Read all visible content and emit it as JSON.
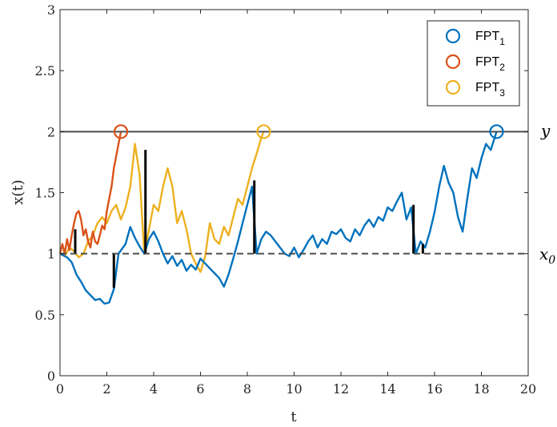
{
  "chart_data": {
    "type": "line",
    "title": "",
    "xlabel": "t",
    "ylabel": "x(t)",
    "xlim": [
      0,
      20
    ],
    "ylim": [
      0,
      3
    ],
    "xticks": [
      "0",
      "2",
      "4",
      "6",
      "8",
      "10",
      "12",
      "14",
      "16",
      "18",
      "20"
    ],
    "yticks": [
      "0",
      "0.5",
      "1",
      "1.5",
      "2",
      "2.5",
      "3"
    ],
    "grid": false,
    "legend_position": "top-right",
    "reference_lines": [
      {
        "label": "y",
        "y": 2,
        "style": "solid",
        "color": "#4d4d4d"
      },
      {
        "label": "x_0",
        "y": 1,
        "style": "dashed",
        "color": "#4d4d4d"
      }
    ],
    "series": [
      {
        "name": "FPT_1",
        "color": "#0072BD",
        "first_passage": {
          "x": 18.65,
          "y": 2.0
        },
        "x": [
          0,
          0.3,
          0.5,
          0.7,
          0.9,
          1.1,
          1.3,
          1.5,
          1.7,
          1.9,
          2.1,
          2.3,
          2.5,
          2.8,
          3.0,
          3.2,
          3.4,
          3.6,
          3.8,
          4.0,
          4.2,
          4.4,
          4.6,
          4.8,
          5.0,
          5.2,
          5.4,
          5.6,
          5.8,
          6.0,
          6.2,
          6.4,
          6.6,
          6.8,
          7.0,
          7.2,
          7.4,
          7.6,
          7.8,
          8.0,
          8.2,
          8.4,
          8.6,
          8.8,
          9.0,
          9.2,
          9.4,
          9.6,
          9.8,
          10.0,
          10.2,
          10.4,
          10.6,
          10.8,
          11.0,
          11.2,
          11.4,
          11.6,
          11.8,
          12.0,
          12.2,
          12.4,
          12.6,
          12.8,
          13.0,
          13.2,
          13.4,
          13.6,
          13.8,
          14.0,
          14.2,
          14.4,
          14.6,
          14.8,
          15.0,
          15.2,
          15.4,
          15.6,
          15.8,
          16.0,
          16.2,
          16.4,
          16.6,
          16.8,
          17.0,
          17.2,
          17.4,
          17.6,
          17.8,
          18.0,
          18.2,
          18.4,
          18.65
        ],
        "y": [
          1.0,
          0.97,
          0.93,
          0.83,
          0.77,
          0.7,
          0.66,
          0.62,
          0.63,
          0.59,
          0.6,
          0.71,
          1.0,
          1.08,
          1.22,
          1.13,
          1.06,
          1.0,
          1.12,
          1.18,
          1.1,
          1.0,
          0.92,
          0.98,
          0.9,
          0.95,
          0.86,
          0.91,
          0.87,
          0.96,
          0.92,
          0.88,
          0.84,
          0.8,
          0.73,
          0.83,
          0.96,
          1.1,
          1.25,
          1.4,
          1.55,
          1.0,
          1.12,
          1.18,
          1.15,
          1.1,
          1.05,
          1.0,
          0.98,
          1.05,
          0.97,
          1.03,
          1.1,
          1.15,
          1.05,
          1.12,
          1.08,
          1.18,
          1.16,
          1.2,
          1.13,
          1.1,
          1.2,
          1.15,
          1.23,
          1.28,
          1.22,
          1.3,
          1.27,
          1.38,
          1.35,
          1.43,
          1.5,
          1.28,
          1.38,
          1.0,
          1.1,
          1.05,
          1.18,
          1.34,
          1.55,
          1.72,
          1.58,
          1.5,
          1.3,
          1.18,
          1.45,
          1.7,
          1.62,
          1.78,
          1.9,
          1.85,
          2.0
        ]
      },
      {
        "name": "FPT_2",
        "color": "#D95319",
        "first_passage": {
          "x": 2.6,
          "y": 2.0
        },
        "x": [
          0,
          0.1,
          0.2,
          0.3,
          0.4,
          0.5,
          0.6,
          0.7,
          0.8,
          0.9,
          1.0,
          1.1,
          1.2,
          1.3,
          1.4,
          1.5,
          1.6,
          1.7,
          1.8,
          1.9,
          2.0,
          2.1,
          2.2,
          2.3,
          2.4,
          2.5,
          2.6
        ],
        "y": [
          1.0,
          1.08,
          1.0,
          1.12,
          1.03,
          1.15,
          1.25,
          1.33,
          1.35,
          1.28,
          1.15,
          1.2,
          1.1,
          1.05,
          1.18,
          1.1,
          1.08,
          1.15,
          1.23,
          1.2,
          1.35,
          1.45,
          1.55,
          1.7,
          1.8,
          1.9,
          2.0
        ]
      },
      {
        "name": "FPT_3",
        "color": "#EDB120",
        "first_passage": {
          "x": 8.7,
          "y": 2.0
        },
        "x": [
          0,
          0.2,
          0.4,
          0.6,
          0.8,
          1.0,
          1.2,
          1.4,
          1.6,
          1.8,
          2.0,
          2.2,
          2.4,
          2.6,
          2.8,
          3.0,
          3.2,
          3.4,
          3.6,
          3.8,
          4.0,
          4.2,
          4.4,
          4.6,
          4.8,
          5.0,
          5.2,
          5.4,
          5.6,
          5.8,
          6.0,
          6.2,
          6.4,
          6.6,
          6.8,
          7.0,
          7.2,
          7.4,
          7.6,
          7.8,
          8.0,
          8.2,
          8.4,
          8.6,
          8.7
        ],
        "y": [
          1.0,
          0.98,
          1.05,
          1.02,
          0.97,
          1.0,
          1.1,
          1.15,
          1.25,
          1.3,
          1.25,
          1.35,
          1.4,
          1.28,
          1.38,
          1.55,
          1.9,
          1.65,
          1.0,
          1.2,
          1.4,
          1.35,
          1.55,
          1.7,
          1.55,
          1.25,
          1.35,
          1.2,
          1.0,
          0.92,
          0.85,
          0.98,
          1.25,
          1.12,
          1.08,
          1.22,
          1.15,
          1.3,
          1.45,
          1.4,
          1.55,
          1.7,
          1.82,
          1.95,
          2.0
        ]
      }
    ]
  },
  "legend": {
    "items": [
      {
        "main": "FPT",
        "sub": "1",
        "color": "#0072BD"
      },
      {
        "main": "FPT",
        "sub": "2",
        "color": "#D95319"
      },
      {
        "main": "FPT",
        "sub": "3",
        "color": "#EDB120"
      }
    ]
  },
  "labels": {
    "y_ref": "y",
    "x0_main": "x",
    "x0_sub": "0"
  },
  "reset_segments": [
    {
      "x": 0.65,
      "y_from": 1.0,
      "y_to": 1.2
    },
    {
      "x": 2.3,
      "y_from": 0.72,
      "y_to": 1.0
    },
    {
      "x": 3.65,
      "y_from": 1.0,
      "y_to": 1.85
    },
    {
      "x": 8.3,
      "y_from": 1.0,
      "y_to": 1.6
    },
    {
      "x": 15.1,
      "y_from": 1.0,
      "y_to": 1.4
    },
    {
      "x": 15.5,
      "y_from": 1.0,
      "y_to": 1.08
    }
  ]
}
